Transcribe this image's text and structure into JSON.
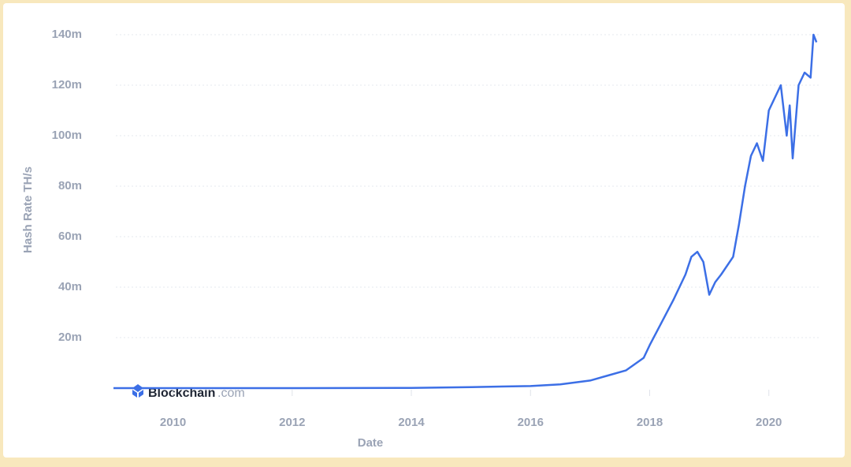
{
  "chart_data": {
    "type": "line",
    "y_label": "Hash Rate TH/s",
    "x_label": "Date",
    "annotations": [
      "Blockchain",
      ".com"
    ],
    "x": [
      2009.0,
      2010.0,
      2011.0,
      2012.0,
      2013.0,
      2014.0,
      2015.0,
      2016.0,
      2016.5,
      2017.0,
      2017.3,
      2017.6,
      2017.9,
      2018.0,
      2018.2,
      2018.4,
      2018.6,
      2018.7,
      2018.8,
      2018.9,
      2019.0,
      2019.1,
      2019.2,
      2019.4,
      2019.5,
      2019.6,
      2019.7,
      2019.8,
      2019.9,
      2020.0,
      2020.1,
      2020.2,
      2020.3,
      2020.35,
      2020.4,
      2020.5,
      2020.6,
      2020.7,
      2020.75,
      2020.8
    ],
    "series": [
      {
        "name": "Hash Rate",
        "color": "#3c6fe6",
        "values": [
          0,
          0,
          0,
          0.01,
          0.02,
          0.1,
          0.4,
          0.8,
          1.5,
          3,
          5,
          7,
          12,
          17,
          26,
          35,
          45,
          52,
          54,
          50,
          37,
          42,
          45,
          52,
          65,
          80,
          92,
          97,
          90,
          110,
          115,
          120,
          100,
          112,
          91,
          120,
          125,
          123,
          140,
          137
        ]
      }
    ],
    "xlim": [
      2009.04,
      2020.85
    ],
    "ylim": [
      0,
      140
    ],
    "xticks": [
      2010,
      2012,
      2014,
      2016,
      2018,
      2020
    ],
    "yticks": [
      {
        "value": 20,
        "label": "20m"
      },
      {
        "value": 40,
        "label": "40m"
      },
      {
        "value": 60,
        "label": "60m"
      },
      {
        "value": 80,
        "label": "80m"
      },
      {
        "value": 100,
        "label": "100m"
      },
      {
        "value": 120,
        "label": "120m"
      },
      {
        "value": 140,
        "label": "140m"
      }
    ],
    "grid": true
  }
}
